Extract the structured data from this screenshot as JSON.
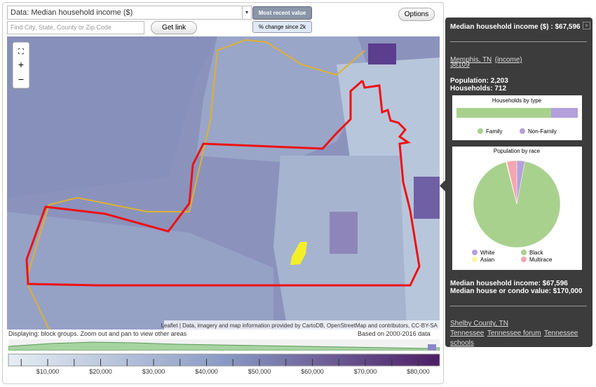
{
  "controls": {
    "data_select": "Data: Median household income ($)",
    "search_placeholder": "Find City, State, County or Zip Code",
    "get_link": "Get link",
    "most_recent": "Most recent value",
    "pct_change": "% change since 2k",
    "options": "Options"
  },
  "map": {
    "attribution": "Leaflet | Data, imagery and map information provided by CartoDB, OpenStreetMap and contributors, CC-BY-SA"
  },
  "status": {
    "displaying": "Displaying: block groups. Zoom out and pan to view other areas",
    "based_on": "Based on 2000-2016 data"
  },
  "legend": {
    "labels": [
      "$10,000",
      "$20,000",
      "$30,000",
      "$40,000",
      "$50,000",
      "$60,000",
      "$70,000",
      "$80,000"
    ]
  },
  "panel": {
    "title": "Median household income ($) : $67,596",
    "place": "Memphis, TN",
    "place_link": "(income)",
    "zip": "38109",
    "population": "Population: 2,203",
    "households": "Households: 712",
    "households_chart": {
      "title": "Households by type",
      "categories": [
        "Family",
        "Non-Family"
      ],
      "colors": [
        "#a9d18e",
        "#b4a0dc"
      ],
      "values": [
        78,
        22
      ]
    },
    "race_chart": {
      "title": "Population by race",
      "categories": [
        "White",
        "Black",
        "Asian",
        "Multirace"
      ],
      "colors": [
        "#b4a0dc",
        "#a9d18e",
        "#fff59d",
        "#f4a6b0"
      ],
      "values": [
        3,
        93,
        0.3,
        3.7
      ]
    },
    "income": "Median household income: $67,596",
    "house_value": "Median house or condo value: $170,000",
    "county": "Shelby County, TN",
    "links": [
      "Tennessee",
      "Tennessee forum",
      "Tennessee schools"
    ]
  }
}
